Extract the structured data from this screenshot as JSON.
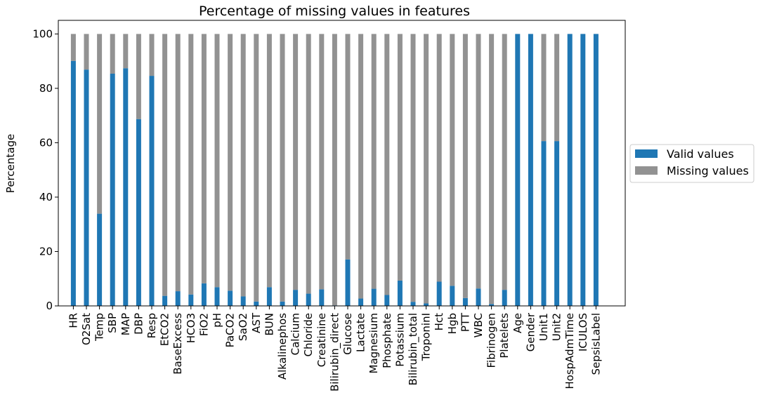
{
  "chart_data": {
    "type": "bar",
    "stacked": true,
    "title": "Percentage of missing values in features",
    "xlabel": "",
    "ylabel": "Percentage",
    "ylim": [
      0,
      105
    ],
    "yticks": [
      0,
      20,
      40,
      60,
      80,
      100
    ],
    "grid": false,
    "legend_position": "right",
    "categories": [
      "HR",
      "O2Sat",
      "Temp",
      "SBP",
      "MAP",
      "DBP",
      "Resp",
      "EtCO2",
      "BaseExcess",
      "HCO3",
      "FiO2",
      "pH",
      "PaCO2",
      "SaO2",
      "AST",
      "BUN",
      "Alkalinephos",
      "Calcium",
      "Chloride",
      "Creatinine",
      "Bilirubin_direct",
      "Glucose",
      "Lactate",
      "Magnesium",
      "Phosphate",
      "Potassium",
      "Bilirubin_total",
      "TroponinI",
      "Hct",
      "Hgb",
      "PTT",
      "WBC",
      "Fibrinogen",
      "Platelets",
      "Age",
      "Gender",
      "Unit1",
      "Unit2",
      "HospAdmTime",
      "ICULOS",
      "SepsisLabel"
    ],
    "series": [
      {
        "name": "Valid values",
        "color": "#1f77b4",
        "values": [
          90.1,
          86.9,
          33.9,
          85.4,
          87.4,
          68.7,
          84.6,
          3.7,
          5.4,
          4.2,
          8.3,
          6.9,
          5.6,
          3.5,
          1.6,
          6.9,
          1.6,
          5.9,
          4.5,
          6.1,
          0.2,
          17.1,
          2.7,
          6.3,
          4.0,
          9.3,
          1.5,
          0.9,
          8.9,
          7.4,
          2.9,
          6.4,
          0.7,
          5.9,
          100,
          100,
          60.6,
          60.6,
          100,
          100,
          100
        ]
      },
      {
        "name": "Missing values",
        "color": "#929292",
        "values": [
          9.9,
          13.1,
          66.1,
          14.6,
          12.6,
          31.3,
          15.4,
          96.3,
          94.6,
          95.8,
          91.7,
          93.1,
          94.4,
          96.5,
          98.4,
          93.1,
          98.4,
          94.1,
          95.5,
          93.9,
          99.8,
          82.9,
          97.3,
          93.7,
          96.0,
          90.7,
          98.5,
          99.1,
          91.1,
          92.6,
          97.1,
          93.6,
          99.3,
          94.1,
          0,
          0,
          39.4,
          39.4,
          0,
          0,
          0
        ]
      }
    ]
  }
}
